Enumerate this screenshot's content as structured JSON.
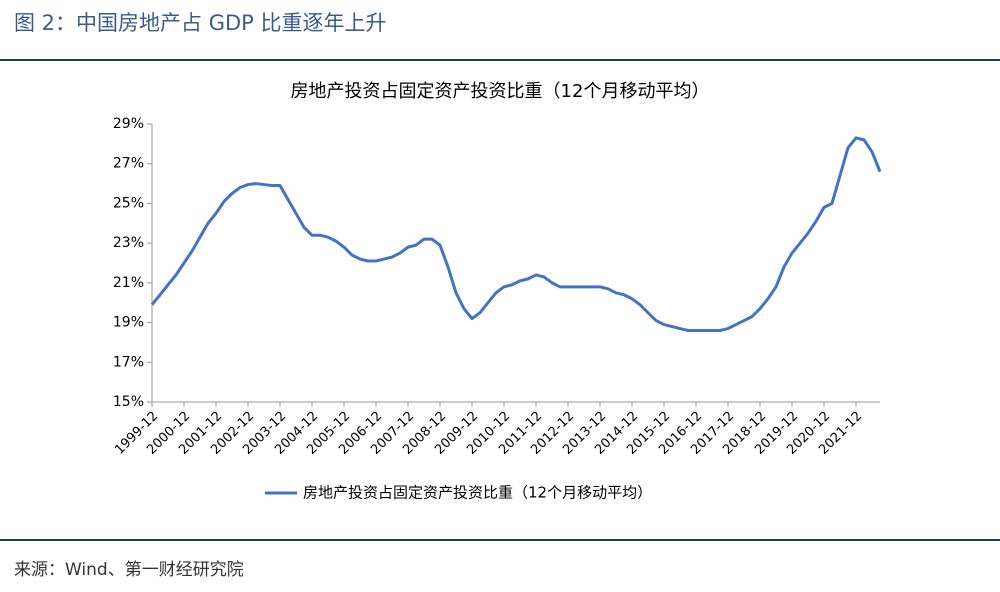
{
  "figure_title": "图 2：中国房地产占 GDP 比重逐年上升",
  "source": "来源：Wind、第一财经研究院",
  "chart_data": {
    "type": "line",
    "title": "房地产投资占固定资产投资比重（12个月移动平均）",
    "categories": [
      "1999-12",
      null,
      null,
      null,
      "2000-12",
      null,
      null,
      null,
      "2001-12",
      null,
      null,
      null,
      "2002-12",
      null,
      null,
      null,
      "2003-12",
      null,
      null,
      null,
      "2004-12",
      null,
      null,
      null,
      "2005-12",
      null,
      null,
      null,
      "2006-12",
      null,
      null,
      null,
      "2007-12",
      null,
      null,
      null,
      "2008-12",
      null,
      null,
      null,
      "2009-12",
      null,
      null,
      null,
      "2010-12",
      null,
      null,
      null,
      "2011-12",
      null,
      null,
      null,
      "2012-12",
      null,
      null,
      null,
      "2013-12",
      null,
      null,
      null,
      "2014-12",
      null,
      null,
      null,
      "2015-12",
      null,
      null,
      null,
      "2016-12",
      null,
      null,
      null,
      "2017-12",
      null,
      null,
      null,
      "2018-12",
      null,
      null,
      null,
      "2019-12",
      null,
      null,
      null,
      "2020-12",
      null,
      null,
      null,
      "2021-12",
      null,
      null,
      null
    ],
    "series": [
      {
        "name": "房地产投资占固定资产投资比重（12个月移动平均）",
        "color": "#4472c4",
        "values": [
          19.9,
          20.4,
          20.9,
          21.4,
          22.0,
          22.6,
          23.3,
          24.0,
          24.5,
          25.1,
          25.5,
          25.8,
          25.95,
          26.0,
          25.95,
          25.9,
          25.9,
          25.2,
          24.5,
          23.8,
          23.4,
          23.4,
          23.3,
          23.1,
          22.8,
          22.4,
          22.2,
          22.1,
          22.1,
          22.2,
          22.3,
          22.5,
          22.8,
          22.9,
          23.2,
          23.2,
          22.9,
          21.8,
          20.5,
          19.7,
          19.2,
          19.5,
          20.0,
          20.5,
          20.8,
          20.9,
          21.1,
          21.2,
          21.4,
          21.3,
          21.0,
          20.8,
          20.8,
          20.8,
          20.8,
          20.8,
          20.8,
          20.7,
          20.5,
          20.4,
          20.2,
          19.9,
          19.5,
          19.1,
          18.9,
          18.8,
          18.7,
          18.6,
          18.6,
          18.6,
          18.6,
          18.6,
          18.7,
          18.9,
          19.1,
          19.3,
          19.7,
          20.2,
          20.8,
          21.8,
          22.5,
          23.0,
          23.5,
          24.1,
          24.8,
          25.0,
          26.4,
          27.8,
          28.3,
          28.2,
          27.6,
          26.6
        ]
      }
    ],
    "ylim": [
      15,
      29
    ],
    "yticks": [
      {
        "value": 15,
        "label": "15%"
      },
      {
        "value": 17,
        "label": "17%"
      },
      {
        "value": 19,
        "label": "19%"
      },
      {
        "value": 21,
        "label": "21%"
      },
      {
        "value": 23,
        "label": "23%"
      },
      {
        "value": 25,
        "label": "25%"
      },
      {
        "value": 27,
        "label": "27%"
      },
      {
        "value": 29,
        "label": "29%"
      }
    ],
    "legend": "bottom"
  }
}
